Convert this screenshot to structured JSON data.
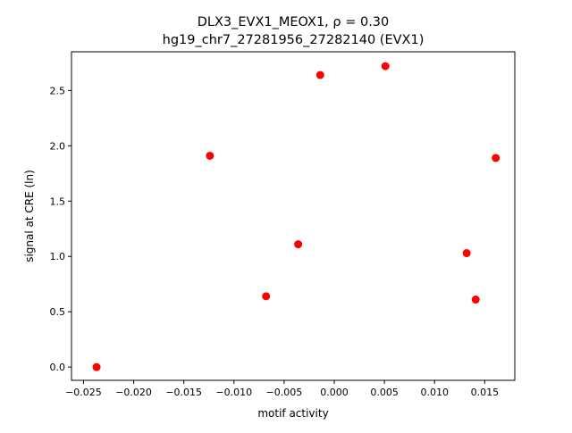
{
  "chart_data": {
    "type": "scatter",
    "title_line1": "DLX3_EVX1_MEOX1, ρ = 0.30",
    "title_line2": "hg19_chr7_27281956_27282140 (EVX1)",
    "xlabel": "motif activity",
    "ylabel": "signal at CRE (ln)",
    "xlim": [
      -0.0262,
      0.018
    ],
    "ylim": [
      -0.12,
      2.85
    ],
    "xticks": [
      -0.025,
      -0.02,
      -0.015,
      -0.01,
      -0.005,
      0.0,
      0.005,
      0.01,
      0.015
    ],
    "xtick_labels": [
      "−0.025",
      "−0.020",
      "−0.015",
      "−0.010",
      "−0.005",
      "0.000",
      "0.005",
      "0.010",
      "0.015"
    ],
    "yticks": [
      0.0,
      0.5,
      1.0,
      1.5,
      2.0,
      2.5
    ],
    "ytick_labels": [
      "0.0",
      "0.5",
      "1.0",
      "1.5",
      "2.0",
      "2.5"
    ],
    "grid": false,
    "marker_color": "#ff0000",
    "points": [
      {
        "x": -0.0237,
        "y": 0.0
      },
      {
        "x": -0.0124,
        "y": 1.91
      },
      {
        "x": -0.0068,
        "y": 0.64
      },
      {
        "x": -0.0036,
        "y": 1.11
      },
      {
        "x": -0.0014,
        "y": 2.64
      },
      {
        "x": 0.0051,
        "y": 2.72
      },
      {
        "x": 0.0132,
        "y": 1.03
      },
      {
        "x": 0.0141,
        "y": 0.61
      },
      {
        "x": 0.0161,
        "y": 1.89
      }
    ]
  }
}
